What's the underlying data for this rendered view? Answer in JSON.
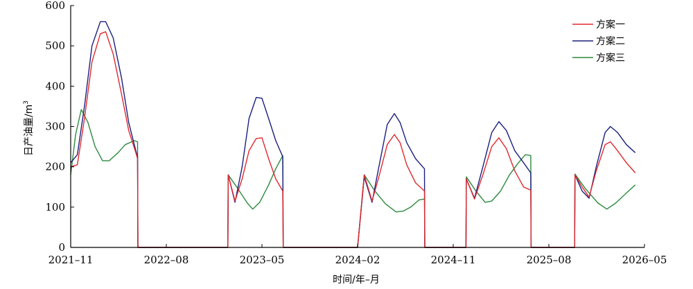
{
  "chart_data": {
    "type": "line",
    "xlabel": "时间/年–月",
    "ylabel": "日产油量/m³",
    "ylabel_base": "日产油量/m",
    "ylabel_sup": "3",
    "ylim": [
      0,
      600
    ],
    "yticks": [
      0,
      100,
      200,
      300,
      400,
      500,
      600
    ],
    "x_axis": {
      "start": "2021-11",
      "end": "2026-05"
    },
    "x_tick_labels": [
      "2021–11",
      "2022–08",
      "2023–05",
      "2024–02",
      "2024–11",
      "2025–08",
      "2026–05"
    ],
    "legend_position": "top-right",
    "series": [
      {
        "name": "方案一",
        "color": "#e0282e",
        "points": [
          [
            "2021-11-01",
            200
          ],
          [
            "2021-11-20",
            205
          ],
          [
            "2021-12-10",
            320
          ],
          [
            "2022-01-01",
            460
          ],
          [
            "2022-01-25",
            530
          ],
          [
            "2022-02-10",
            535
          ],
          [
            "2022-03-01",
            480
          ],
          [
            "2022-03-25",
            380
          ],
          [
            "2022-04-15",
            290
          ],
          [
            "2022-05-05",
            235
          ],
          [
            "2022-05-10",
            220
          ],
          [
            "2022-05-11",
            0
          ],
          [
            "2022-09-10",
            0
          ],
          [
            "2023-01-25",
            0
          ],
          [
            "2023-01-26",
            180
          ],
          [
            "2023-02-15",
            115
          ],
          [
            "2023-03-05",
            170
          ],
          [
            "2023-03-25",
            240
          ],
          [
            "2023-04-15",
            270
          ],
          [
            "2023-05-01",
            272
          ],
          [
            "2023-05-20",
            220
          ],
          [
            "2023-06-10",
            170
          ],
          [
            "2023-06-30",
            140
          ],
          [
            "2023-07-01",
            0
          ],
          [
            "2024-02-01",
            0
          ],
          [
            "2024-02-20",
            180
          ],
          [
            "2024-03-12",
            115
          ],
          [
            "2024-04-01",
            175
          ],
          [
            "2024-04-25",
            255
          ],
          [
            "2024-05-15",
            280
          ],
          [
            "2024-06-01",
            260
          ],
          [
            "2024-06-20",
            205
          ],
          [
            "2024-07-15",
            160
          ],
          [
            "2024-08-10",
            140
          ],
          [
            "2024-08-11",
            0
          ],
          [
            "2024-12-07",
            0
          ],
          [
            "2024-12-08",
            170
          ],
          [
            "2025-01-01",
            120
          ],
          [
            "2025-01-25",
            180
          ],
          [
            "2025-02-20",
            250
          ],
          [
            "2025-03-10",
            272
          ],
          [
            "2025-04-01",
            245
          ],
          [
            "2025-04-25",
            190
          ],
          [
            "2025-05-20",
            150
          ],
          [
            "2025-06-10",
            142
          ],
          [
            "2025-06-11",
            0
          ],
          [
            "2025-10-14",
            0
          ],
          [
            "2025-10-15",
            180
          ],
          [
            "2025-11-05",
            150
          ],
          [
            "2025-11-25",
            125
          ],
          [
            "2025-12-15",
            190
          ],
          [
            "2026-01-10",
            255
          ],
          [
            "2026-01-25",
            262
          ],
          [
            "2026-02-15",
            240
          ],
          [
            "2026-03-10",
            210
          ],
          [
            "2026-04-05",
            185
          ]
        ]
      },
      {
        "name": "方案二",
        "color": "#1a1e7e",
        "points": [
          [
            "2021-11-01",
            210
          ],
          [
            "2021-11-20",
            230
          ],
          [
            "2021-12-10",
            350
          ],
          [
            "2022-01-01",
            500
          ],
          [
            "2022-01-25",
            560
          ],
          [
            "2022-02-10",
            560
          ],
          [
            "2022-03-01",
            520
          ],
          [
            "2022-03-25",
            420
          ],
          [
            "2022-04-15",
            310
          ],
          [
            "2022-05-05",
            240
          ],
          [
            "2022-05-10",
            225
          ],
          [
            "2022-05-11",
            0
          ],
          [
            "2022-09-10",
            0
          ],
          [
            "2023-01-25",
            0
          ],
          [
            "2023-01-26",
            180
          ],
          [
            "2023-02-15",
            112
          ],
          [
            "2023-03-05",
            200
          ],
          [
            "2023-03-25",
            320
          ],
          [
            "2023-04-15",
            372
          ],
          [
            "2023-05-01",
            370
          ],
          [
            "2023-05-20",
            320
          ],
          [
            "2023-06-10",
            265
          ],
          [
            "2023-06-30",
            225
          ],
          [
            "2023-07-01",
            0
          ],
          [
            "2024-02-01",
            0
          ],
          [
            "2024-02-20",
            175
          ],
          [
            "2024-03-12",
            112
          ],
          [
            "2024-04-01",
            200
          ],
          [
            "2024-04-25",
            305
          ],
          [
            "2024-05-15",
            332
          ],
          [
            "2024-06-01",
            310
          ],
          [
            "2024-06-20",
            260
          ],
          [
            "2024-07-15",
            220
          ],
          [
            "2024-08-10",
            195
          ],
          [
            "2024-08-11",
            0
          ],
          [
            "2024-12-07",
            0
          ],
          [
            "2024-12-08",
            170
          ],
          [
            "2025-01-01",
            122
          ],
          [
            "2025-01-25",
            200
          ],
          [
            "2025-02-20",
            285
          ],
          [
            "2025-03-10",
            312
          ],
          [
            "2025-04-01",
            290
          ],
          [
            "2025-04-25",
            240
          ],
          [
            "2025-05-20",
            210
          ],
          [
            "2025-06-10",
            185
          ],
          [
            "2025-06-11",
            0
          ],
          [
            "2025-10-14",
            0
          ],
          [
            "2025-10-15",
            180
          ],
          [
            "2025-11-05",
            140
          ],
          [
            "2025-11-25",
            122
          ],
          [
            "2025-12-15",
            200
          ],
          [
            "2026-01-10",
            285
          ],
          [
            "2026-01-25",
            300
          ],
          [
            "2026-02-15",
            285
          ],
          [
            "2026-03-10",
            255
          ],
          [
            "2026-04-05",
            235
          ]
        ]
      },
      {
        "name": "方案三",
        "color": "#2a8a3c",
        "points": [
          [
            "2021-11-01",
            180
          ],
          [
            "2021-11-15",
            280
          ],
          [
            "2021-12-01",
            342
          ],
          [
            "2021-12-20",
            310
          ],
          [
            "2022-01-10",
            250
          ],
          [
            "2022-02-01",
            215
          ],
          [
            "2022-02-20",
            215
          ],
          [
            "2022-03-15",
            235
          ],
          [
            "2022-04-05",
            255
          ],
          [
            "2022-05-01",
            265
          ],
          [
            "2022-05-10",
            262
          ],
          [
            "2022-05-11",
            0
          ],
          [
            "2022-09-10",
            0
          ],
          [
            "2023-01-25",
            0
          ],
          [
            "2023-01-26",
            180
          ],
          [
            "2023-02-20",
            150
          ],
          [
            "2023-03-20",
            110
          ],
          [
            "2023-04-05",
            95
          ],
          [
            "2023-04-25",
            112
          ],
          [
            "2023-05-20",
            155
          ],
          [
            "2023-06-10",
            195
          ],
          [
            "2023-06-30",
            228
          ],
          [
            "2023-07-01",
            0
          ],
          [
            "2024-02-01",
            0
          ],
          [
            "2024-02-20",
            180
          ],
          [
            "2024-03-20",
            140
          ],
          [
            "2024-04-20",
            108
          ],
          [
            "2024-05-20",
            88
          ],
          [
            "2024-06-10",
            90
          ],
          [
            "2024-07-01",
            100
          ],
          [
            "2024-07-25",
            118
          ],
          [
            "2024-08-10",
            120
          ],
          [
            "2024-08-11",
            0
          ],
          [
            "2024-12-07",
            0
          ],
          [
            "2024-12-08",
            175
          ],
          [
            "2025-01-05",
            140
          ],
          [
            "2025-02-01",
            112
          ],
          [
            "2025-02-20",
            115
          ],
          [
            "2025-03-15",
            140
          ],
          [
            "2025-04-10",
            180
          ],
          [
            "2025-05-05",
            210
          ],
          [
            "2025-05-25",
            230
          ],
          [
            "2025-06-10",
            228
          ],
          [
            "2025-06-11",
            0
          ],
          [
            "2025-10-14",
            0
          ],
          [
            "2025-10-15",
            182
          ],
          [
            "2025-11-15",
            145
          ],
          [
            "2025-12-20",
            110
          ],
          [
            "2026-01-15",
            95
          ],
          [
            "2026-02-10",
            110
          ],
          [
            "2026-03-10",
            135
          ],
          [
            "2026-04-05",
            155
          ]
        ]
      }
    ]
  }
}
